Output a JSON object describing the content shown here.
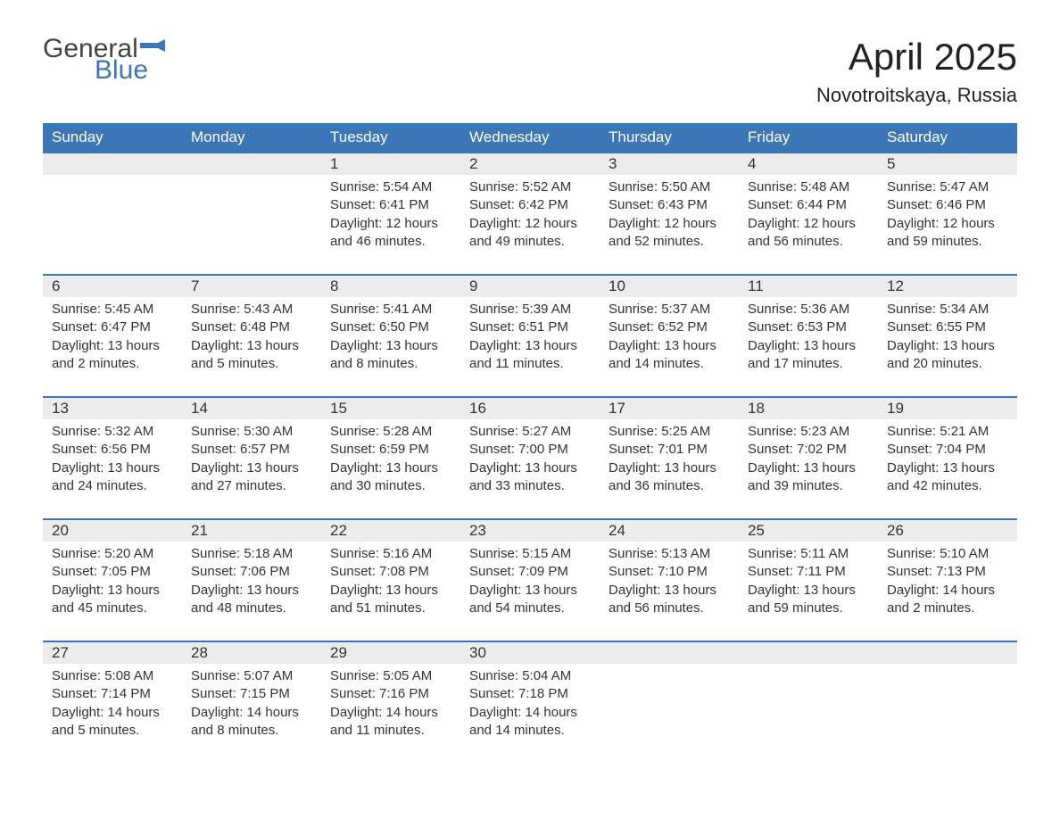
{
  "brand": {
    "text1": "General",
    "text2": "Blue",
    "color_gray": "#444444",
    "color_blue": "#3b77b6"
  },
  "title": "April 2025",
  "subtitle": "Novotroitskaya, Russia",
  "accent_color": "#3b77b6",
  "header_bg": "#3b77b6",
  "daynum_bg": "#ececec",
  "text_color": "#333333",
  "background_color": "#ffffff",
  "font_sizes": {
    "title": 42,
    "subtitle": 22,
    "th": 17,
    "daynum": 17,
    "details": 15,
    "logo": 30
  },
  "columns": [
    "Sunday",
    "Monday",
    "Tuesday",
    "Wednesday",
    "Thursday",
    "Friday",
    "Saturday"
  ],
  "weeks": [
    [
      null,
      null,
      {
        "day": "1",
        "sunrise": "Sunrise: 5:54 AM",
        "sunset": "Sunset: 6:41 PM",
        "daylight1": "Daylight: 12 hours",
        "daylight2": "and 46 minutes."
      },
      {
        "day": "2",
        "sunrise": "Sunrise: 5:52 AM",
        "sunset": "Sunset: 6:42 PM",
        "daylight1": "Daylight: 12 hours",
        "daylight2": "and 49 minutes."
      },
      {
        "day": "3",
        "sunrise": "Sunrise: 5:50 AM",
        "sunset": "Sunset: 6:43 PM",
        "daylight1": "Daylight: 12 hours",
        "daylight2": "and 52 minutes."
      },
      {
        "day": "4",
        "sunrise": "Sunrise: 5:48 AM",
        "sunset": "Sunset: 6:44 PM",
        "daylight1": "Daylight: 12 hours",
        "daylight2": "and 56 minutes."
      },
      {
        "day": "5",
        "sunrise": "Sunrise: 5:47 AM",
        "sunset": "Sunset: 6:46 PM",
        "daylight1": "Daylight: 12 hours",
        "daylight2": "and 59 minutes."
      }
    ],
    [
      {
        "day": "6",
        "sunrise": "Sunrise: 5:45 AM",
        "sunset": "Sunset: 6:47 PM",
        "daylight1": "Daylight: 13 hours",
        "daylight2": "and 2 minutes."
      },
      {
        "day": "7",
        "sunrise": "Sunrise: 5:43 AM",
        "sunset": "Sunset: 6:48 PM",
        "daylight1": "Daylight: 13 hours",
        "daylight2": "and 5 minutes."
      },
      {
        "day": "8",
        "sunrise": "Sunrise: 5:41 AM",
        "sunset": "Sunset: 6:50 PM",
        "daylight1": "Daylight: 13 hours",
        "daylight2": "and 8 minutes."
      },
      {
        "day": "9",
        "sunrise": "Sunrise: 5:39 AM",
        "sunset": "Sunset: 6:51 PM",
        "daylight1": "Daylight: 13 hours",
        "daylight2": "and 11 minutes."
      },
      {
        "day": "10",
        "sunrise": "Sunrise: 5:37 AM",
        "sunset": "Sunset: 6:52 PM",
        "daylight1": "Daylight: 13 hours",
        "daylight2": "and 14 minutes."
      },
      {
        "day": "11",
        "sunrise": "Sunrise: 5:36 AM",
        "sunset": "Sunset: 6:53 PM",
        "daylight1": "Daylight: 13 hours",
        "daylight2": "and 17 minutes."
      },
      {
        "day": "12",
        "sunrise": "Sunrise: 5:34 AM",
        "sunset": "Sunset: 6:55 PM",
        "daylight1": "Daylight: 13 hours",
        "daylight2": "and 20 minutes."
      }
    ],
    [
      {
        "day": "13",
        "sunrise": "Sunrise: 5:32 AM",
        "sunset": "Sunset: 6:56 PM",
        "daylight1": "Daylight: 13 hours",
        "daylight2": "and 24 minutes."
      },
      {
        "day": "14",
        "sunrise": "Sunrise: 5:30 AM",
        "sunset": "Sunset: 6:57 PM",
        "daylight1": "Daylight: 13 hours",
        "daylight2": "and 27 minutes."
      },
      {
        "day": "15",
        "sunrise": "Sunrise: 5:28 AM",
        "sunset": "Sunset: 6:59 PM",
        "daylight1": "Daylight: 13 hours",
        "daylight2": "and 30 minutes."
      },
      {
        "day": "16",
        "sunrise": "Sunrise: 5:27 AM",
        "sunset": "Sunset: 7:00 PM",
        "daylight1": "Daylight: 13 hours",
        "daylight2": "and 33 minutes."
      },
      {
        "day": "17",
        "sunrise": "Sunrise: 5:25 AM",
        "sunset": "Sunset: 7:01 PM",
        "daylight1": "Daylight: 13 hours",
        "daylight2": "and 36 minutes."
      },
      {
        "day": "18",
        "sunrise": "Sunrise: 5:23 AM",
        "sunset": "Sunset: 7:02 PM",
        "daylight1": "Daylight: 13 hours",
        "daylight2": "and 39 minutes."
      },
      {
        "day": "19",
        "sunrise": "Sunrise: 5:21 AM",
        "sunset": "Sunset: 7:04 PM",
        "daylight1": "Daylight: 13 hours",
        "daylight2": "and 42 minutes."
      }
    ],
    [
      {
        "day": "20",
        "sunrise": "Sunrise: 5:20 AM",
        "sunset": "Sunset: 7:05 PM",
        "daylight1": "Daylight: 13 hours",
        "daylight2": "and 45 minutes."
      },
      {
        "day": "21",
        "sunrise": "Sunrise: 5:18 AM",
        "sunset": "Sunset: 7:06 PM",
        "daylight1": "Daylight: 13 hours",
        "daylight2": "and 48 minutes."
      },
      {
        "day": "22",
        "sunrise": "Sunrise: 5:16 AM",
        "sunset": "Sunset: 7:08 PM",
        "daylight1": "Daylight: 13 hours",
        "daylight2": "and 51 minutes."
      },
      {
        "day": "23",
        "sunrise": "Sunrise: 5:15 AM",
        "sunset": "Sunset: 7:09 PM",
        "daylight1": "Daylight: 13 hours",
        "daylight2": "and 54 minutes."
      },
      {
        "day": "24",
        "sunrise": "Sunrise: 5:13 AM",
        "sunset": "Sunset: 7:10 PM",
        "daylight1": "Daylight: 13 hours",
        "daylight2": "and 56 minutes."
      },
      {
        "day": "25",
        "sunrise": "Sunrise: 5:11 AM",
        "sunset": "Sunset: 7:11 PM",
        "daylight1": "Daylight: 13 hours",
        "daylight2": "and 59 minutes."
      },
      {
        "day": "26",
        "sunrise": "Sunrise: 5:10 AM",
        "sunset": "Sunset: 7:13 PM",
        "daylight1": "Daylight: 14 hours",
        "daylight2": "and 2 minutes."
      }
    ],
    [
      {
        "day": "27",
        "sunrise": "Sunrise: 5:08 AM",
        "sunset": "Sunset: 7:14 PM",
        "daylight1": "Daylight: 14 hours",
        "daylight2": "and 5 minutes."
      },
      {
        "day": "28",
        "sunrise": "Sunrise: 5:07 AM",
        "sunset": "Sunset: 7:15 PM",
        "daylight1": "Daylight: 14 hours",
        "daylight2": "and 8 minutes."
      },
      {
        "day": "29",
        "sunrise": "Sunrise: 5:05 AM",
        "sunset": "Sunset: 7:16 PM",
        "daylight1": "Daylight: 14 hours",
        "daylight2": "and 11 minutes."
      },
      {
        "day": "30",
        "sunrise": "Sunrise: 5:04 AM",
        "sunset": "Sunset: 7:18 PM",
        "daylight1": "Daylight: 14 hours",
        "daylight2": "and 14 minutes."
      },
      null,
      null,
      null
    ]
  ]
}
